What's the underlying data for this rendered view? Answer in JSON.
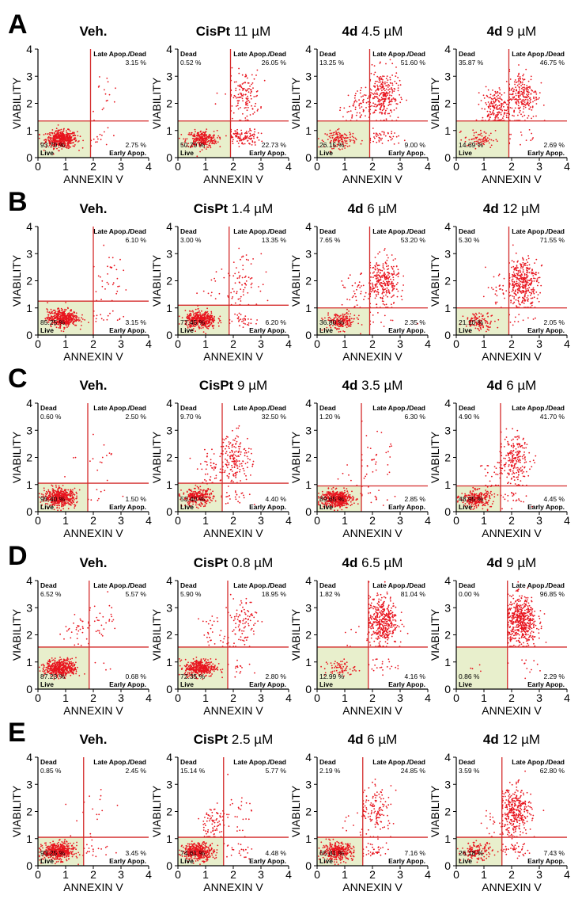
{
  "axis": {
    "xlabel": "ANNEXIN V",
    "ylabel": "VIABILITY",
    "xlim": [
      0,
      4
    ],
    "ylim": [
      0,
      4
    ],
    "ticks": [
      "0",
      "1",
      "2",
      "3",
      "4"
    ],
    "quadrant_names": {
      "ul": "Dead",
      "ur": "Late Apop./Dead",
      "ll": "Live",
      "lr": "Early Apop."
    }
  },
  "colors": {
    "dots": "#e8141e",
    "gate_lines": "#d42a2a",
    "live_fill": "#e8efcc",
    "text": "#000000"
  },
  "rows": [
    {
      "letter": "A",
      "panels": [
        {
          "title_bold": "Veh.",
          "title_rest": "",
          "gate_x": 1.9,
          "gate_y": 1.35,
          "pct": {
            "ul": "",
            "ur": "3.15 %",
            "ll": "93.70 %",
            "lr": "2.75 %"
          }
        },
        {
          "title_bold": "CisPt",
          "title_rest": " 11 µM",
          "gate_x": 1.9,
          "gate_y": 1.35,
          "pct": {
            "ul": "0.52 %",
            "ur": "26.05 %",
            "ll": "50.70 %",
            "lr": "22.73 %"
          }
        },
        {
          "title_bold": "4d",
          "title_rest": " 4.5 µM",
          "gate_x": 1.9,
          "gate_y": 1.35,
          "pct": {
            "ul": "13.25 %",
            "ur": "51.60 %",
            "ll": "26.15 %",
            "lr": "9.00 %"
          }
        },
        {
          "title_bold": "4d",
          "title_rest": " 9 µM",
          "gate_x": 1.9,
          "gate_y": 1.35,
          "pct": {
            "ul": "35.87 %",
            "ur": "46.75 %",
            "ll": "14.69 %",
            "lr": "2.69 %"
          }
        }
      ]
    },
    {
      "letter": "B",
      "panels": [
        {
          "title_bold": "Veh.",
          "title_rest": "",
          "gate_x": 2.0,
          "gate_y": 1.25,
          "pct": {
            "ul": "",
            "ur": "6.10 %",
            "ll": "85.25 %",
            "lr": "3.15 %"
          }
        },
        {
          "title_bold": "CisPt",
          "title_rest": " 1.4 µM",
          "gate_x": 1.85,
          "gate_y": 1.1,
          "pct": {
            "ul": "3.00 %",
            "ur": "13.35 %",
            "ll": "77.45 %",
            "lr": "6.20 %"
          }
        },
        {
          "title_bold": "4d",
          "title_rest": " 6 µM",
          "gate_x": 1.9,
          "gate_y": 1.0,
          "pct": {
            "ul": "7.65 %",
            "ur": "53.20 %",
            "ll": "36.80 %",
            "lr": "2.35 %"
          }
        },
        {
          "title_bold": "4d",
          "title_rest": " 12 µM",
          "gate_x": 1.9,
          "gate_y": 1.0,
          "pct": {
            "ul": "5.30 %",
            "ur": "71.55 %",
            "ll": "21.10 %",
            "lr": "2.05 %"
          }
        }
      ]
    },
    {
      "letter": "C",
      "panels": [
        {
          "title_bold": "Veh.",
          "title_rest": "",
          "gate_x": 1.8,
          "gate_y": 1.05,
          "pct": {
            "ul": "0.60 %",
            "ur": "2.50 %",
            "ll": "95.40 %",
            "lr": "1.50 %"
          }
        },
        {
          "title_bold": "CisPt",
          "title_rest": " 9 µM",
          "gate_x": 1.6,
          "gate_y": 1.05,
          "pct": {
            "ul": "9.70 %",
            "ur": "32.50 %",
            "ll": "53.40 %",
            "lr": "4.40 %"
          }
        },
        {
          "title_bold": "4d",
          "title_rest": " 3.5 µM",
          "gate_x": 1.6,
          "gate_y": 0.95,
          "pct": {
            "ul": "1.20 %",
            "ur": "6.30 %",
            "ll": "89.65 %",
            "lr": "2.85 %"
          }
        },
        {
          "title_bold": "4d",
          "title_rest": " 6 µM",
          "gate_x": 1.6,
          "gate_y": 0.95,
          "pct": {
            "ul": "4.90 %",
            "ur": "41.70 %",
            "ll": "48.95 %",
            "lr": "4.45 %"
          }
        }
      ]
    },
    {
      "letter": "D",
      "panels": [
        {
          "title_bold": "Veh.",
          "title_rest": "",
          "gate_x": 1.85,
          "gate_y": 1.55,
          "pct": {
            "ul": "6.52 %",
            "ur": "5.57 %",
            "ll": "87.23 %",
            "lr": "0.68 %"
          }
        },
        {
          "title_bold": "CisPt",
          "title_rest": " 0.8 µM",
          "gate_x": 1.8,
          "gate_y": 1.55,
          "pct": {
            "ul": "5.90 %",
            "ur": "18.95 %",
            "ll": "72.35 %",
            "lr": "2.80 %"
          }
        },
        {
          "title_bold": "4d",
          "title_rest": " 6.5 µM",
          "gate_x": 1.85,
          "gate_y": 1.55,
          "pct": {
            "ul": "1.82 %",
            "ur": "81.04 %",
            "ll": "12.99 %",
            "lr": "4.16 %"
          }
        },
        {
          "title_bold": "4d",
          "title_rest": " 9 µM",
          "gate_x": 1.85,
          "gate_y": 1.55,
          "pct": {
            "ul": "0.00 %",
            "ur": "96.85 %",
            "ll": "0.86 %",
            "lr": "2.29 %"
          }
        }
      ]
    },
    {
      "letter": "E",
      "panels": [
        {
          "title_bold": "Veh.",
          "title_rest": "",
          "gate_x": 1.65,
          "gate_y": 1.05,
          "pct": {
            "ul": "0.85 %",
            "ur": "2.45 %",
            "ll": "93.25 %",
            "lr": "3.45 %"
          }
        },
        {
          "title_bold": "CisPt",
          "title_rest": " 2.5 µM",
          "gate_x": 1.65,
          "gate_y": 1.05,
          "pct": {
            "ul": "15.14 %",
            "ur": "5.77 %",
            "ll": "74.61 %",
            "lr": "4.48 %"
          }
        },
        {
          "title_bold": "4d",
          "title_rest": " 6 µM",
          "gate_x": 1.65,
          "gate_y": 1.05,
          "pct": {
            "ul": "2.19 %",
            "ur": "24.85 %",
            "ll": "65.81 %",
            "lr": "7.16 %"
          }
        },
        {
          "title_bold": "4d",
          "title_rest": " 12 µM",
          "gate_x": 1.65,
          "gate_y": 1.05,
          "pct": {
            "ul": "3.59 %",
            "ur": "62.80 %",
            "ll": "26.18 %",
            "lr": "7.43 %"
          }
        }
      ]
    }
  ],
  "chart_data": {
    "type": "scatter",
    "description_units": "percent of cells per quadrant",
    "xlabel": "ANNEXIN V",
    "ylabel": "VIABILITY",
    "xlim": [
      0,
      4
    ],
    "ylim": [
      0,
      4
    ],
    "grid": false,
    "quadrants": [
      "Dead",
      "Late Apop./Dead",
      "Live",
      "Early Apop."
    ],
    "panels": [
      {
        "row": "A",
        "title": "Veh.",
        "Dead": null,
        "Late Apop./Dead": 3.15,
        "Live": 93.7,
        "Early Apop.": 2.75
      },
      {
        "row": "A",
        "title": "CisPt 11 µM",
        "Dead": 0.52,
        "Late Apop./Dead": 26.05,
        "Live": 50.7,
        "Early Apop.": 22.73
      },
      {
        "row": "A",
        "title": "4d 4.5 µM",
        "Dead": 13.25,
        "Late Apop./Dead": 51.6,
        "Live": 26.15,
        "Early Apop.": 9.0
      },
      {
        "row": "A",
        "title": "4d 9 µM",
        "Dead": 35.87,
        "Late Apop./Dead": 46.75,
        "Live": 14.69,
        "Early Apop.": 2.69
      },
      {
        "row": "B",
        "title": "Veh.",
        "Dead": null,
        "Late Apop./Dead": 6.1,
        "Live": 85.25,
        "Early Apop.": 3.15
      },
      {
        "row": "B",
        "title": "CisPt 1.4 µM",
        "Dead": 3.0,
        "Late Apop./Dead": 13.35,
        "Live": 77.45,
        "Early Apop.": 6.2
      },
      {
        "row": "B",
        "title": "4d 6 µM",
        "Dead": 7.65,
        "Late Apop./Dead": 53.2,
        "Live": 36.8,
        "Early Apop.": 2.35
      },
      {
        "row": "B",
        "title": "4d 12 µM",
        "Dead": 5.3,
        "Late Apop./Dead": 71.55,
        "Live": 21.1,
        "Early Apop.": 2.05
      },
      {
        "row": "C",
        "title": "Veh.",
        "Dead": 0.6,
        "Late Apop./Dead": 2.5,
        "Live": 95.4,
        "Early Apop.": 1.5
      },
      {
        "row": "C",
        "title": "CisPt 9 µM",
        "Dead": 9.7,
        "Late Apop./Dead": 32.5,
        "Live": 53.4,
        "Early Apop.": 4.4
      },
      {
        "row": "C",
        "title": "4d 3.5 µM",
        "Dead": 1.2,
        "Late Apop./Dead": 6.3,
        "Live": 89.65,
        "Early Apop.": 2.85
      },
      {
        "row": "C",
        "title": "4d 6 µM",
        "Dead": 4.9,
        "Late Apop./Dead": 41.7,
        "Live": 48.95,
        "Early Apop.": 4.45
      },
      {
        "row": "D",
        "title": "Veh.",
        "Dead": 6.52,
        "Late Apop./Dead": 5.57,
        "Live": 87.23,
        "Early Apop.": 0.68
      },
      {
        "row": "D",
        "title": "CisPt 0.8 µM",
        "Dead": 5.9,
        "Late Apop./Dead": 18.95,
        "Live": 72.35,
        "Early Apop.": 2.8
      },
      {
        "row": "D",
        "title": "4d 6.5 µM",
        "Dead": 1.82,
        "Late Apop./Dead": 81.04,
        "Live": 12.99,
        "Early Apop.": 4.16
      },
      {
        "row": "D",
        "title": "4d 9 µM",
        "Dead": 0.0,
        "Late Apop./Dead": 96.85,
        "Live": 0.86,
        "Early Apop.": 2.29
      },
      {
        "row": "E",
        "title": "Veh.",
        "Dead": 0.85,
        "Late Apop./Dead": 2.45,
        "Live": 93.25,
        "Early Apop.": 3.45
      },
      {
        "row": "E",
        "title": "CisPt 2.5 µM",
        "Dead": 15.14,
        "Late Apop./Dead": 5.77,
        "Live": 74.61,
        "Early Apop.": 4.48
      },
      {
        "row": "E",
        "title": "4d 6 µM",
        "Dead": 2.19,
        "Late Apop./Dead": 24.85,
        "Live": 65.81,
        "Early Apop.": 7.16
      },
      {
        "row": "E",
        "title": "4d 12 µM",
        "Dead": 3.59,
        "Late Apop./Dead": 62.8,
        "Live": 26.18,
        "Early Apop.": 7.43
      }
    ]
  }
}
